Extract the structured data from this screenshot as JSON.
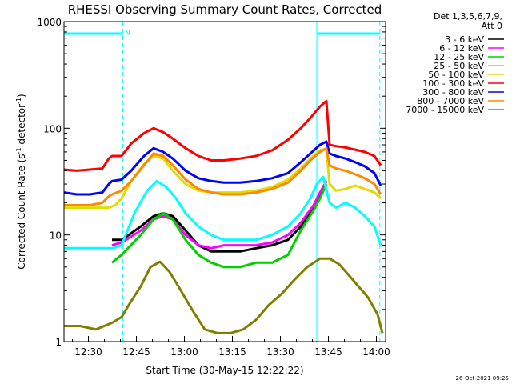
{
  "chart_data": {
    "type": "line",
    "title": "RHESSI Observing Summary Count Rates, Corrected",
    "xlabel": "Start Time (30-May-15 12:22:22)",
    "ylabel_main": "Corrected Count Rate (s",
    "ylabel_sup1": "-1",
    "ylabel_mid": " detector",
    "ylabel_sup2": "-1",
    "ylabel_end": ")",
    "timestamp": "26-Oct-2021 09:25",
    "y_scale": "log",
    "ylim": [
      1,
      1000
    ],
    "xlim_minutes": [
      0,
      100.5
    ],
    "x_ticks": [
      {
        "label": "12:30",
        "min": 7.63
      },
      {
        "label": "12:45",
        "min": 22.63
      },
      {
        "label": "13:00",
        "min": 37.63
      },
      {
        "label": "13:15",
        "min": 52.63
      },
      {
        "label": "13:30",
        "min": 67.63
      },
      {
        "label": "13:45",
        "min": 82.63
      },
      {
        "label": "14:00",
        "min": 97.63
      }
    ],
    "y_ticks": [
      {
        "label": "1",
        "value": 1
      },
      {
        "label": "10",
        "value": 10
      },
      {
        "label": "100",
        "value": 100
      },
      {
        "label": "1000",
        "value": 1000
      }
    ],
    "legend_header": [
      "Det 1,3,5,6,7,9,",
      "Att 0"
    ],
    "flag_text": "N",
    "night_intervals_min": [
      [
        0,
        18.4
      ],
      [
        79,
        98.7
      ]
    ],
    "series": [
      {
        "name": "3 - 6 keV",
        "color": "#000000",
        "x": [
          15,
          18,
          24,
          28,
          31,
          34,
          38,
          42,
          46,
          50,
          55,
          60,
          65,
          70,
          74,
          78,
          80,
          82
        ],
        "y": [
          9,
          9,
          12,
          15,
          16,
          15,
          11,
          8,
          7,
          7,
          7,
          7.5,
          8,
          9,
          12,
          18,
          24,
          32
        ]
      },
      {
        "name": "6 - 12 keV",
        "color": "#ff00ff",
        "x": [
          15,
          18,
          24,
          28,
          31,
          34,
          38,
          42,
          46,
          50,
          55,
          60,
          65,
          70,
          74,
          78,
          80,
          82
        ],
        "y": [
          8,
          8.5,
          11,
          14,
          15,
          14,
          10,
          8,
          7.5,
          8,
          8,
          8,
          8.5,
          10,
          13,
          19,
          25,
          32
        ]
      },
      {
        "name": "12 - 25 keV",
        "color": "#00d000",
        "x": [
          15,
          18,
          24,
          28,
          31,
          34,
          38,
          42,
          46,
          50,
          55,
          60,
          65,
          70,
          74,
          78,
          80,
          82
        ],
        "y": [
          5.5,
          6.5,
          10,
          14,
          16,
          14,
          9,
          6.5,
          5.5,
          5,
          5,
          5.5,
          5.5,
          6.5,
          11,
          17,
          22,
          30
        ]
      },
      {
        "name": "25 - 50 keV",
        "color": "#00ffff",
        "x": [
          0,
          8,
          15,
          18,
          22,
          26,
          29,
          32,
          35,
          38,
          42,
          46,
          50,
          55,
          60,
          65,
          70,
          74,
          77,
          79,
          81,
          83,
          85,
          88,
          91,
          94,
          97,
          99
        ],
        "y": [
          7.5,
          7.5,
          7.5,
          8,
          16,
          26,
          32,
          28,
          22,
          16,
          12,
          10,
          9,
          9,
          9,
          10,
          12,
          16,
          22,
          30,
          35,
          20,
          18,
          20,
          18,
          15,
          12,
          8
        ]
      },
      {
        "name": "50 - 100 keV",
        "color": "#dddd00",
        "x": [
          0,
          8,
          14,
          16,
          18,
          21,
          25,
          28,
          31,
          34,
          38,
          42,
          46,
          50,
          55,
          60,
          65,
          70,
          74,
          77,
          80,
          82,
          83,
          85,
          88,
          91,
          94,
          97,
          99
        ],
        "y": [
          18,
          18,
          18,
          19,
          22,
          32,
          46,
          55,
          52,
          40,
          30,
          26,
          25,
          25,
          25,
          26,
          28,
          33,
          42,
          52,
          62,
          64,
          30,
          26,
          27,
          29,
          27,
          25,
          22
        ]
      },
      {
        "name": "100 - 300 keV",
        "color": "#ff0000",
        "x": [
          0,
          4,
          8,
          12,
          14,
          15,
          18,
          21,
          25,
          28,
          31,
          34,
          38,
          42,
          46,
          50,
          55,
          60,
          65,
          70,
          74,
          77,
          80,
          82,
          83,
          85,
          88,
          91,
          94,
          97,
          99
        ],
        "y": [
          41,
          40,
          41,
          42,
          52,
          55,
          55,
          72,
          90,
          100,
          92,
          80,
          65,
          55,
          50,
          50,
          52,
          55,
          62,
          78,
          100,
          125,
          160,
          180,
          70,
          68,
          66,
          63,
          60,
          55,
          45
        ]
      },
      {
        "name": "300 - 800 keV",
        "color": "#0000ff",
        "x": [
          0,
          4,
          8,
          12,
          14,
          15,
          18,
          21,
          25,
          28,
          31,
          34,
          38,
          42,
          46,
          50,
          55,
          60,
          65,
          70,
          74,
          77,
          80,
          82,
          83,
          85,
          88,
          91,
          94,
          97,
          99
        ],
        "y": [
          25,
          24,
          24,
          25,
          30,
          32,
          33,
          40,
          55,
          65,
          60,
          52,
          40,
          34,
          32,
          31,
          31,
          32,
          34,
          38,
          48,
          58,
          70,
          75,
          58,
          55,
          52,
          48,
          44,
          38,
          29
        ]
      },
      {
        "name": "800 - 7000 keV",
        "color": "#ff8800",
        "x": [
          0,
          4,
          8,
          12,
          14,
          15,
          18,
          21,
          25,
          28,
          31,
          34,
          38,
          42,
          46,
          50,
          55,
          60,
          65,
          70,
          74,
          77,
          80,
          82,
          83,
          85,
          88,
          91,
          94,
          97,
          99
        ],
        "y": [
          19,
          19,
          19,
          20,
          23,
          24,
          26,
          32,
          45,
          58,
          55,
          45,
          33,
          27,
          25,
          24,
          24,
          25,
          27,
          31,
          40,
          50,
          60,
          65,
          45,
          42,
          40,
          37,
          34,
          30,
          24
        ]
      },
      {
        "name": "7000 - 15000 keV",
        "color": "#808000",
        "x": [
          0,
          5,
          10,
          15,
          18,
          21,
          24,
          27,
          30,
          33,
          36,
          40,
          44,
          48,
          52,
          56,
          60,
          64,
          68,
          72,
          76,
          80,
          83,
          86,
          89,
          92,
          95,
          98,
          99.5
        ],
        "y": [
          1.4,
          1.4,
          1.3,
          1.5,
          1.7,
          2.4,
          3.3,
          5,
          5.6,
          4.5,
          3.2,
          2,
          1.3,
          1.2,
          1.2,
          1.3,
          1.6,
          2.2,
          2.8,
          3.8,
          5,
          6,
          6,
          5.3,
          4.2,
          3.3,
          2.6,
          1.8,
          1.2
        ]
      }
    ]
  }
}
